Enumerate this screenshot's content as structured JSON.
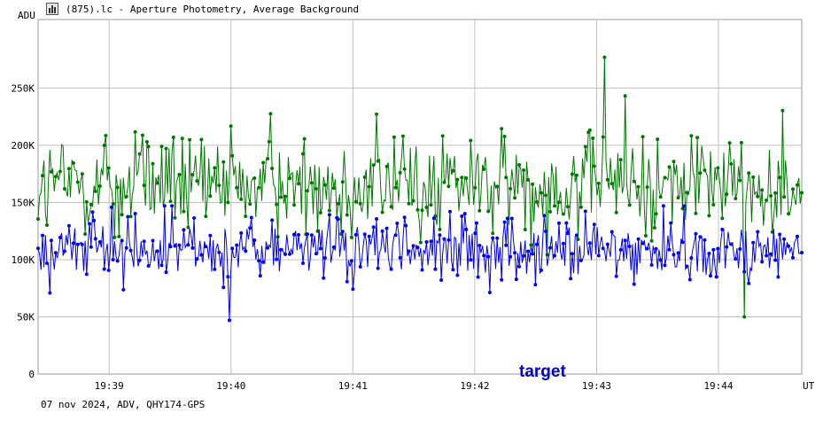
{
  "window": {
    "title": "(875).lc - Aperture Photometry, Average Background",
    "icon": "chart-window-icon"
  },
  "footer": "07 nov 2024, ADV, QHY174-GPS",
  "target_label": "target",
  "chart_data": {
    "type": "line",
    "xlabel": "UT",
    "ylabel": "ADU",
    "x_range": [
      "19:38:25",
      "19:44:41"
    ],
    "ylim": [
      0,
      310000
    ],
    "y_ticks": [
      0,
      50000,
      100000,
      150000,
      200000,
      250000
    ],
    "y_tick_labels": [
      "0",
      "50K",
      "100K",
      "150K",
      "200K",
      "250K"
    ],
    "x_ticks": [
      "19:39",
      "19:40",
      "19:41",
      "19:42",
      "19:43",
      "19:44"
    ],
    "grid": true,
    "colors": {
      "green_series": "#007700",
      "blue_series": "#0000ee",
      "grid": "#c0c0c0"
    },
    "series": [
      {
        "color": "#007700",
        "baseline": 165000,
        "spread": 30000,
        "max_value": 277000,
        "min_value": 50000,
        "x_at_max": "19:43:04",
        "x_at_min": "19:44:13"
      },
      {
        "color": "#0000ee",
        "baseline": 108000,
        "spread": 18000,
        "max_value": 155000,
        "min_value": 47000,
        "x_at_min": "19:39:59"
      }
    ]
  }
}
